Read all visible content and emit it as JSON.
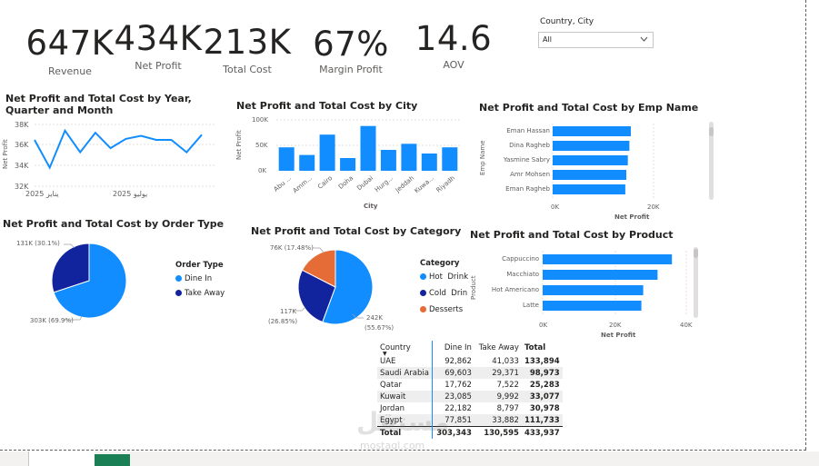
{
  "kpis": [
    {
      "value": "647K",
      "label": "Revenue"
    },
    {
      "value": "434K",
      "label": "Net Profit"
    },
    {
      "value": "213K",
      "label": "Total Cost"
    },
    {
      "value": "67%",
      "label": "Margin Profit"
    },
    {
      "value": "14.6",
      "label": "AOV"
    }
  ],
  "slicer": {
    "title": "Country, City",
    "value": "All",
    "icon": "chevron-down-icon"
  },
  "line_chart": {
    "title": "Net Profit and Total Cost by Year, Quarter and Month",
    "ylabel": "Net Profit",
    "yticks": [
      "38K",
      "36K",
      "34K",
      "32K"
    ],
    "xticks": [
      "يناير 2025",
      "يوليو 2025"
    ],
    "color": "#118dff",
    "chart_data": {
      "type": "line",
      "ylim": [
        32000,
        38000
      ],
      "values": [
        36500,
        33800,
        37400,
        35300,
        37200,
        35700,
        36600,
        36900,
        36500,
        36500,
        35300,
        37000
      ]
    }
  },
  "city_chart": {
    "title": "Net Profit and Total Cost by City",
    "ylabel": "Net Profit",
    "xlabel": "City",
    "yticks": [
      "100K",
      "50K",
      "0K"
    ],
    "color": "#118dff",
    "chart_data": {
      "type": "bar",
      "categories": [
        "Abu ...",
        "Amm...",
        "Cairo",
        "Doha",
        "Dubai",
        "Hurg...",
        "Jeddah",
        "Kuwa...",
        "Riyadh"
      ],
      "values": [
        46000,
        31000,
        71000,
        25000,
        88000,
        41000,
        53000,
        34000,
        46000
      ],
      "ylim": [
        0,
        100000
      ]
    }
  },
  "emp_chart": {
    "title": "Net Profit and Total Cost by Emp Name",
    "ylabel": "Emp Name",
    "xlabel": "Net Profit",
    "xticks": [
      "0K",
      "20K"
    ],
    "color": "#118dff",
    "chart_data": {
      "type": "bar",
      "categories": [
        "Eman Hassan",
        "Dina Ragheb",
        "Yasmine Sabry",
        "Amr Mohsen",
        "Eman Ragheb"
      ],
      "values": [
        15500,
        15200,
        14900,
        14600,
        14400
      ],
      "xlim": [
        0,
        20000
      ]
    }
  },
  "order_pie": {
    "title": "Net Profit and Total Cost by Order Type",
    "legend_title": "Order Type",
    "labels": [
      "303K (69.9%)",
      "131K (30.1%)"
    ],
    "chart_data": {
      "type": "pie",
      "categories": [
        "Dine In",
        "Take Away"
      ],
      "values": [
        303343,
        130595
      ],
      "colors": [
        "#118dff",
        "#12239e"
      ]
    }
  },
  "category_pie": {
    "title": "Net Profit and Total Cost by Category",
    "legend_title": "Category",
    "labels": [
      "242K",
      "(55.67%)",
      "117K",
      "(26.85%)",
      "76K (17.48%)"
    ],
    "chart_data": {
      "type": "pie",
      "categories": [
        "Hot  Drink",
        "Cold  Drin",
        "Desserts"
      ],
      "values": [
        242000,
        117000,
        76000
      ],
      "colors": [
        "#118dff",
        "#12239e",
        "#e66c37"
      ]
    }
  },
  "product_chart": {
    "title": "Net Profit and Total Cost by Product",
    "ylabel": "Product",
    "xlabel": "Net Profit",
    "xticks": [
      "0K",
      "20K",
      "40K"
    ],
    "color": "#118dff",
    "chart_data": {
      "type": "bar",
      "categories": [
        "Cappuccino",
        "Macchiato",
        "Hot Americano",
        "Latte"
      ],
      "values": [
        36000,
        32000,
        28000,
        27500
      ],
      "xlim": [
        0,
        40000
      ]
    }
  },
  "matrix": {
    "headers": [
      "Country",
      "Dine In",
      "Take Away",
      "Total"
    ],
    "rows": [
      [
        "UAE",
        "92,862",
        "41,033",
        "133,894"
      ],
      [
        "Saudi Arabia",
        "69,603",
        "29,371",
        "98,973"
      ],
      [
        "Qatar",
        "17,762",
        "7,522",
        "25,283"
      ],
      [
        "Kuwait",
        "23,085",
        "9,992",
        "33,077"
      ],
      [
        "Jordan",
        "22,182",
        "8,797",
        "30,978"
      ],
      [
        "Egypt",
        "77,851",
        "33,882",
        "111,733"
      ]
    ],
    "total": [
      "Total",
      "303,343",
      "130,595",
      "433,937"
    ]
  },
  "watermark": {
    "text": "مستقل",
    "sub": "mostaql.com"
  }
}
